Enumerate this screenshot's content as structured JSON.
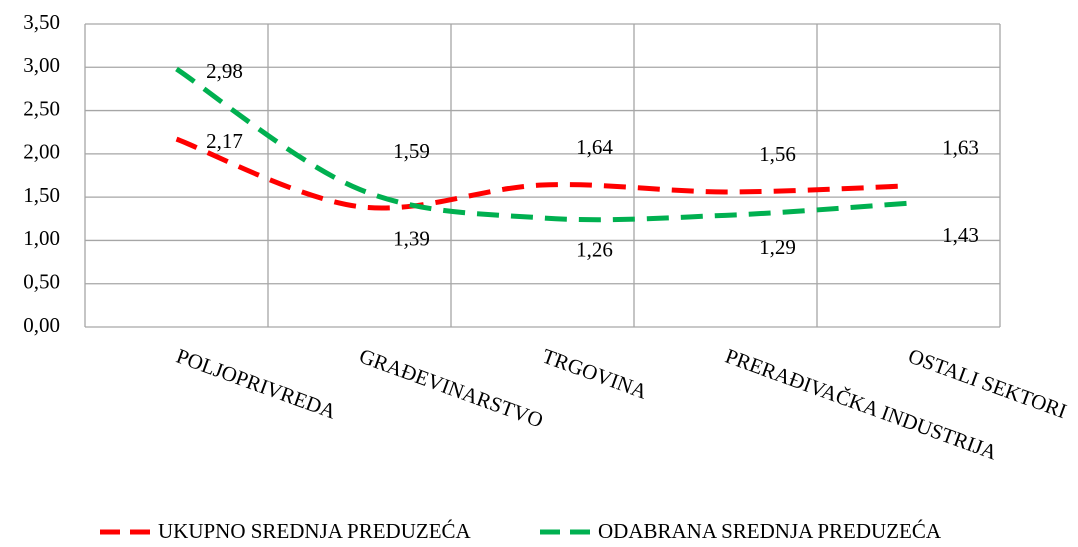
{
  "chart_data": {
    "type": "line",
    "categories": [
      "POLJOPRIVREDA",
      "GRAĐEVINARSTVO",
      "TRGOVINA",
      "PRERAĐIVAČKA INDUSTRIJA",
      "OSTALI SEKTORI"
    ],
    "series": [
      {
        "name": "UKUPNO SREDNJA PREDUZEĆA",
        "color": "#ff0000",
        "values": [
          2.17,
          1.39,
          1.64,
          1.56,
          1.63
        ],
        "value_labels": [
          "2,17",
          "1,39",
          "1,64",
          "1,56",
          "1,63"
        ]
      },
      {
        "name": "ODABRANA SREDNJA PREDUZEĆA",
        "color": "#00b050",
        "values": [
          2.98,
          1.59,
          1.26,
          1.29,
          1.43
        ],
        "value_labels": [
          "2,98",
          "1,59",
          "1,26",
          "1,29",
          "1,43"
        ]
      }
    ],
    "ylim": [
      0,
      3.5
    ],
    "yticks": [
      {
        "value": 0,
        "label": "0,00"
      },
      {
        "value": 0.5,
        "label": "0,50"
      },
      {
        "value": 1,
        "label": "1,00"
      },
      {
        "value": 1.5,
        "label": "1,50"
      },
      {
        "value": 2,
        "label": "2,00"
      },
      {
        "value": 2.5,
        "label": "2,50"
      },
      {
        "value": 3,
        "label": "3,00"
      },
      {
        "value": 3.5,
        "label": "3,50"
      }
    ],
    "grid": true,
    "legend": "bottom"
  }
}
